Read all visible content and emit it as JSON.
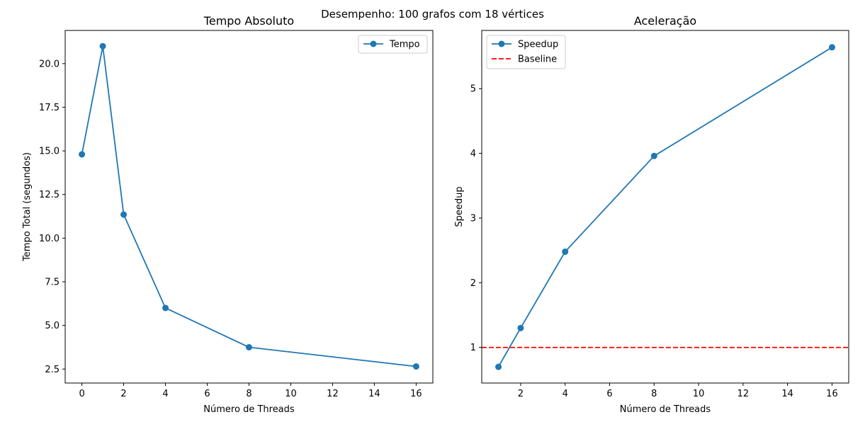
{
  "figure": {
    "suptitle": "Desempenho: 100 grafos com 18 vértices"
  },
  "chart_data": [
    {
      "type": "line",
      "title": "Tempo Absoluto",
      "xlabel": "Número de Threads",
      "ylabel": "Tempo Total (segundos)",
      "xlim": [
        -0.8,
        16.8
      ],
      "ylim": [
        1.7,
        21.9
      ],
      "xticks": [
        0,
        2,
        4,
        6,
        8,
        10,
        12,
        14,
        16
      ],
      "xtick_labels": [
        "0",
        "2",
        "4",
        "6",
        "8",
        "10",
        "12",
        "14",
        "16"
      ],
      "yticks": [
        2.5,
        5.0,
        7.5,
        10.0,
        12.5,
        15.0,
        17.5,
        20.0
      ],
      "ytick_labels": [
        "2.5",
        "5.0",
        "7.5",
        "10.0",
        "12.5",
        "15.0",
        "17.5",
        "20.0"
      ],
      "legend_position": "upper right",
      "series": [
        {
          "name": "Tempo",
          "color": "#1f77b4",
          "marker": "circle",
          "linestyle": "solid",
          "x": [
            0,
            1,
            2,
            4,
            8,
            16
          ],
          "y": [
            14.8,
            21.0,
            11.35,
            6.0,
            3.75,
            2.65
          ]
        }
      ]
    },
    {
      "type": "line",
      "title": "Aceleração",
      "xlabel": "Número de Threads",
      "ylabel": "Speedup",
      "xlim": [
        0.25,
        16.75
      ],
      "ylim": [
        0.45,
        5.9
      ],
      "xticks": [
        2,
        4,
        6,
        8,
        10,
        12,
        14,
        16
      ],
      "xtick_labels": [
        "2",
        "4",
        "6",
        "8",
        "10",
        "12",
        "14",
        "16"
      ],
      "yticks": [
        1,
        2,
        3,
        4,
        5
      ],
      "ytick_labels": [
        "1",
        "2",
        "3",
        "4",
        "5"
      ],
      "legend_position": "upper left",
      "series": [
        {
          "name": "Speedup",
          "color": "#1f77b4",
          "marker": "circle",
          "linestyle": "solid",
          "x": [
            1,
            2,
            4,
            8,
            16
          ],
          "y": [
            0.7,
            1.3,
            2.48,
            3.96,
            5.64
          ]
        },
        {
          "name": "Baseline",
          "color": "#ff0000",
          "marker": "none",
          "linestyle": "dashed",
          "hline": 1
        }
      ]
    }
  ]
}
